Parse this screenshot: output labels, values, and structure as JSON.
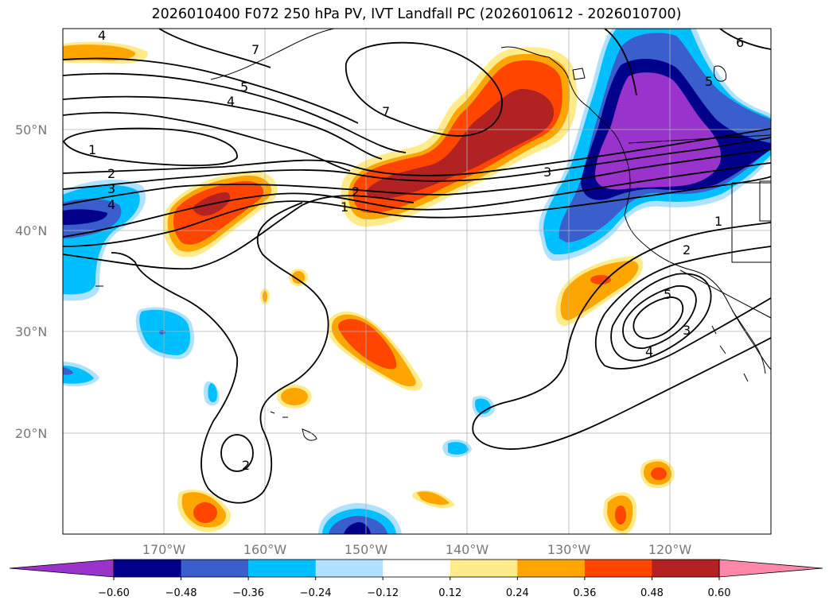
{
  "title": "2026010400 F072 250 hPa PV, IVT Landfall PC (2026010612 - 2026010700)",
  "lat_labels": [
    "50°N",
    "40°N",
    "30°N",
    "20°N"
  ],
  "lon_labels": [
    "170°W",
    "160°W",
    "150°W",
    "140°W",
    "130°W",
    "120°W"
  ],
  "colorbar": {
    "colors": [
      "#9933cc",
      "#00008b",
      "#3a5fcd",
      "#00bfff",
      "#b0e2ff",
      "#ffffff",
      "#ffeb8a",
      "#ffa500",
      "#ff4500",
      "#b22222",
      "#ff88aa"
    ],
    "tick_labels": [
      "−0.60",
      "−0.48",
      "−0.36",
      "−0.24",
      "−0.12",
      "0.12",
      "0.24",
      "0.36",
      "0.48",
      "0.60"
    ]
  },
  "contour_labels": [
    "4",
    "7",
    "5",
    "4",
    "7",
    "1",
    "2",
    "3",
    "4",
    "2",
    "1",
    "3",
    "6",
    "5",
    "1",
    "2",
    "5",
    "4",
    "3",
    "2"
  ]
}
